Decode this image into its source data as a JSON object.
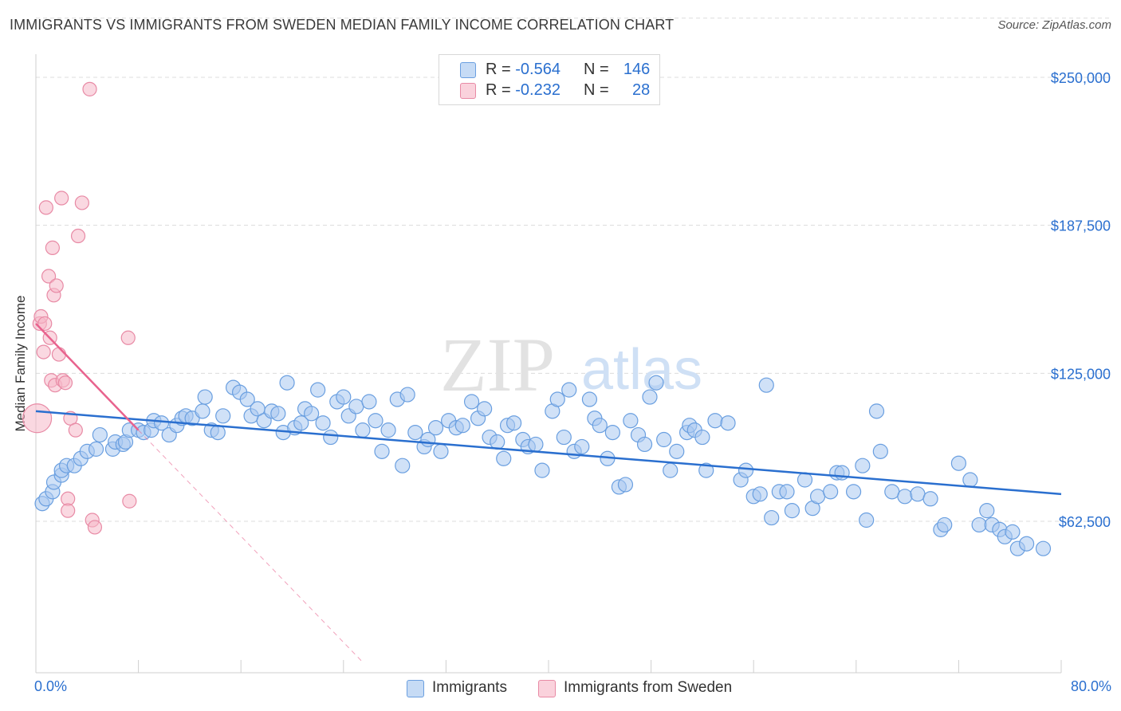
{
  "title": "IMMIGRANTS VS IMMIGRANTS FROM SWEDEN MEDIAN FAMILY INCOME CORRELATION CHART",
  "source": "Source: ZipAtlas.com",
  "watermark": {
    "zip": "ZIP",
    "atlas": "atlas"
  },
  "legend_top": {
    "rows": [
      {
        "r_label": "R =",
        "r_value": "-0.564",
        "n_label": "N =",
        "n_value": "146"
      },
      {
        "r_label": "R =",
        "r_value": "-0.232",
        "n_label": "N =",
        "n_value": "28"
      }
    ]
  },
  "legend_bottom": {
    "items": [
      "Immigrants",
      "Immigrants from Sweden"
    ]
  },
  "colors": {
    "blue_fill": "#a9c8f0",
    "blue_stroke": "#6a9fe0",
    "blue_line": "#2a6fcf",
    "pink_fill": "#f5b8c8",
    "pink_stroke": "#e88aa5",
    "pink_line": "#e8638e",
    "axis_text": "#2a6fcf",
    "grid": "#dcdcdc"
  },
  "chart_data": {
    "type": "scatter",
    "title": "IMMIGRANTS VS IMMIGRANTS FROM SWEDEN MEDIAN FAMILY INCOME CORRELATION CHART",
    "xlabel": "",
    "ylabel": "Median Family Income",
    "xlim": [
      0,
      80
    ],
    "ylim": [
      0,
      262500
    ],
    "x_tick_labels": [
      "0.0%",
      "80.0%"
    ],
    "y_ticks": [
      62500,
      125000,
      187500,
      250000
    ],
    "y_tick_labels": [
      "$62,500",
      "$125,000",
      "$187,500",
      "$250,000"
    ],
    "grid": true,
    "legend_position": "top-center",
    "series": [
      {
        "name": "Immigrants",
        "r": -0.564,
        "n": 146,
        "trend": {
          "x": [
            0,
            80
          ],
          "y": [
            109000,
            74000
          ],
          "style": "solid"
        },
        "points": [
          [
            0.5,
            70000
          ],
          [
            0.8,
            72000
          ],
          [
            1.3,
            75000
          ],
          [
            1.4,
            79000
          ],
          [
            2.0,
            82000
          ],
          [
            2.0,
            84000
          ],
          [
            2.4,
            86000
          ],
          [
            3.0,
            86000
          ],
          [
            3.5,
            89000
          ],
          [
            4.0,
            92000
          ],
          [
            4.7,
            93000
          ],
          [
            5.0,
            99000
          ],
          [
            6.0,
            93000
          ],
          [
            6.2,
            96000
          ],
          [
            6.8,
            95000
          ],
          [
            7.0,
            96000
          ],
          [
            7.3,
            101000
          ],
          [
            8.0,
            101000
          ],
          [
            8.4,
            100000
          ],
          [
            9.0,
            101000
          ],
          [
            9.2,
            105000
          ],
          [
            9.8,
            104000
          ],
          [
            10.4,
            99000
          ],
          [
            11.0,
            103000
          ],
          [
            11.4,
            106000
          ],
          [
            11.7,
            107000
          ],
          [
            12.2,
            106000
          ],
          [
            13.0,
            109000
          ],
          [
            13.2,
            115000
          ],
          [
            13.7,
            101000
          ],
          [
            14.2,
            100000
          ],
          [
            14.6,
            107000
          ],
          [
            15.4,
            119000
          ],
          [
            15.9,
            117000
          ],
          [
            16.5,
            114000
          ],
          [
            16.8,
            107000
          ],
          [
            17.3,
            110000
          ],
          [
            17.8,
            105000
          ],
          [
            18.4,
            109000
          ],
          [
            18.9,
            108000
          ],
          [
            19.3,
            100000
          ],
          [
            19.6,
            121000
          ],
          [
            20.2,
            102000
          ],
          [
            20.7,
            104000
          ],
          [
            21.0,
            110000
          ],
          [
            21.5,
            108000
          ],
          [
            22.0,
            118000
          ],
          [
            22.4,
            104000
          ],
          [
            23.0,
            98000
          ],
          [
            23.5,
            113000
          ],
          [
            24.0,
            115000
          ],
          [
            24.4,
            107000
          ],
          [
            25.0,
            111000
          ],
          [
            25.5,
            101000
          ],
          [
            26.0,
            113000
          ],
          [
            26.5,
            105000
          ],
          [
            27.0,
            92000
          ],
          [
            27.5,
            101000
          ],
          [
            28.2,
            114000
          ],
          [
            28.6,
            86000
          ],
          [
            29.0,
            116000
          ],
          [
            29.6,
            100000
          ],
          [
            30.3,
            94000
          ],
          [
            30.6,
            97000
          ],
          [
            31.2,
            102000
          ],
          [
            31.6,
            92000
          ],
          [
            32.2,
            105000
          ],
          [
            32.8,
            102000
          ],
          [
            33.3,
            103000
          ],
          [
            34.0,
            113000
          ],
          [
            34.5,
            106000
          ],
          [
            35.0,
            110000
          ],
          [
            35.4,
            98000
          ],
          [
            36.0,
            96000
          ],
          [
            36.5,
            89000
          ],
          [
            36.8,
            103000
          ],
          [
            37.3,
            104000
          ],
          [
            38.0,
            97000
          ],
          [
            38.4,
            94000
          ],
          [
            39.0,
            95000
          ],
          [
            39.5,
            84000
          ],
          [
            40.3,
            109000
          ],
          [
            40.7,
            114000
          ],
          [
            41.2,
            98000
          ],
          [
            41.6,
            118000
          ],
          [
            42.0,
            92000
          ],
          [
            42.6,
            94000
          ],
          [
            43.2,
            114000
          ],
          [
            43.6,
            106000
          ],
          [
            44.0,
            103000
          ],
          [
            44.6,
            89000
          ],
          [
            45.0,
            100000
          ],
          [
            45.5,
            77000
          ],
          [
            46.0,
            78000
          ],
          [
            46.4,
            105000
          ],
          [
            47.0,
            99000
          ],
          [
            47.5,
            95000
          ],
          [
            47.9,
            115000
          ],
          [
            48.4,
            121000
          ],
          [
            49.0,
            97000
          ],
          [
            49.5,
            84000
          ],
          [
            50.0,
            92000
          ],
          [
            50.8,
            100000
          ],
          [
            51.0,
            103000
          ],
          [
            51.4,
            101000
          ],
          [
            52.0,
            98000
          ],
          [
            52.3,
            84000
          ],
          [
            53.0,
            105000
          ],
          [
            54.0,
            104000
          ],
          [
            55.0,
            80000
          ],
          [
            55.4,
            84000
          ],
          [
            56.0,
            73000
          ],
          [
            56.5,
            74000
          ],
          [
            57.0,
            120000
          ],
          [
            57.4,
            64000
          ],
          [
            58.0,
            75000
          ],
          [
            58.6,
            75000
          ],
          [
            59.0,
            67000
          ],
          [
            60.0,
            80000
          ],
          [
            60.6,
            68000
          ],
          [
            61.0,
            73000
          ],
          [
            62.0,
            75000
          ],
          [
            62.5,
            83000
          ],
          [
            62.9,
            83000
          ],
          [
            63.8,
            75000
          ],
          [
            64.5,
            86000
          ],
          [
            64.8,
            63000
          ],
          [
            65.6,
            109000
          ],
          [
            65.9,
            92000
          ],
          [
            66.8,
            75000
          ],
          [
            67.8,
            73000
          ],
          [
            68.8,
            74000
          ],
          [
            69.8,
            72000
          ],
          [
            70.6,
            59000
          ],
          [
            70.9,
            61000
          ],
          [
            72.0,
            87000
          ],
          [
            72.9,
            80000
          ],
          [
            73.6,
            61000
          ],
          [
            74.2,
            67000
          ],
          [
            74.6,
            61000
          ],
          [
            75.2,
            59000
          ],
          [
            75.6,
            56000
          ],
          [
            76.2,
            58000
          ],
          [
            76.6,
            51000
          ],
          [
            77.3,
            53000
          ],
          [
            78.6,
            51000
          ]
        ]
      },
      {
        "name": "Immigrants from Sweden",
        "r": -0.232,
        "n": 28,
        "trend": {
          "x": [
            0,
            8
          ],
          "y": [
            146000,
            101000
          ],
          "style": "solid",
          "extension": {
            "x": [
              8,
              25.5
            ],
            "y": [
              101000,
              3000
            ],
            "style": "dashed"
          }
        },
        "points": [
          [
            0.1,
            106000
          ],
          [
            0.3,
            146000
          ],
          [
            0.4,
            149000
          ],
          [
            0.6,
            134000
          ],
          [
            0.7,
            146000
          ],
          [
            0.8,
            195000
          ],
          [
            1.0,
            166000
          ],
          [
            1.1,
            140000
          ],
          [
            1.2,
            122000
          ],
          [
            1.3,
            178000
          ],
          [
            1.4,
            158000
          ],
          [
            1.5,
            120000
          ],
          [
            1.6,
            162000
          ],
          [
            1.8,
            133000
          ],
          [
            2.0,
            199000
          ],
          [
            2.1,
            122000
          ],
          [
            2.3,
            121000
          ],
          [
            2.5,
            72000
          ],
          [
            2.5,
            67000
          ],
          [
            2.7,
            106000
          ],
          [
            3.1,
            101000
          ],
          [
            3.3,
            183000
          ],
          [
            3.6,
            197000
          ],
          [
            4.2,
            245000
          ],
          [
            4.4,
            63000
          ],
          [
            4.6,
            60000
          ],
          [
            7.2,
            140000
          ],
          [
            7.3,
            71000
          ]
        ]
      }
    ]
  }
}
